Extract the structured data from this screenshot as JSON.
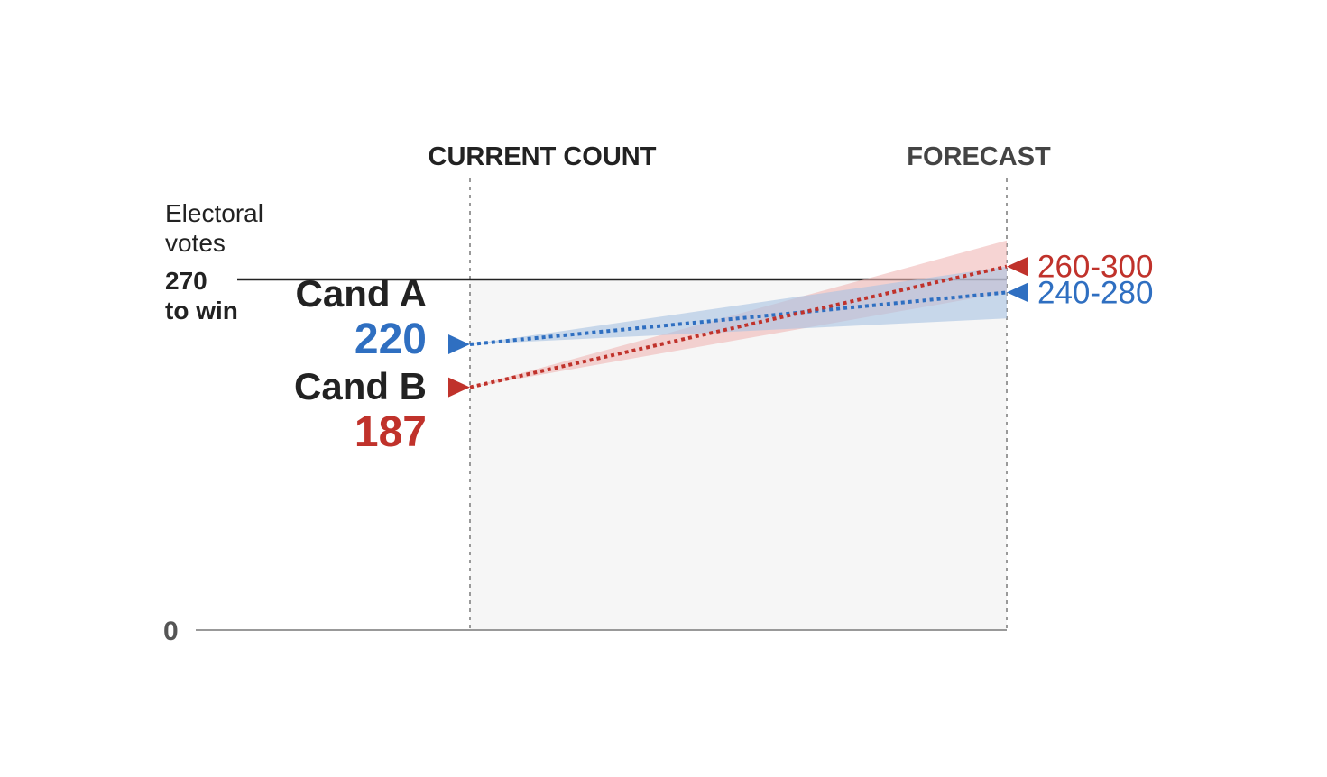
{
  "colors": {
    "candidate_a": "#2f6fc1",
    "candidate_b": "#c0322b",
    "band_a": "#a9c3e2",
    "band_b": "#f0b8b5",
    "panel": "#f6f6f6",
    "win_line": "#222222",
    "axis": "#999999"
  },
  "chart_data": {
    "type": "line",
    "columns": [
      "CURRENT COUNT",
      "FORECAST"
    ],
    "y_title": [
      "Electoral",
      "votes"
    ],
    "threshold": {
      "value": 270,
      "label": [
        "270",
        "to win"
      ]
    },
    "zero_label": "0",
    "ylim": [
      0,
      270
    ],
    "series": [
      {
        "name": "Cand A",
        "color_key": "candidate_a",
        "current": 220,
        "current_label": "220",
        "forecast": 260,
        "forecast_range": [
          240,
          280
        ],
        "forecast_label": "240-280"
      },
      {
        "name": "Cand B",
        "color_key": "candidate_b",
        "current": 187,
        "current_label": "187",
        "forecast": 280,
        "forecast_range": [
          260,
          300
        ],
        "forecast_label": "260-300"
      }
    ]
  }
}
